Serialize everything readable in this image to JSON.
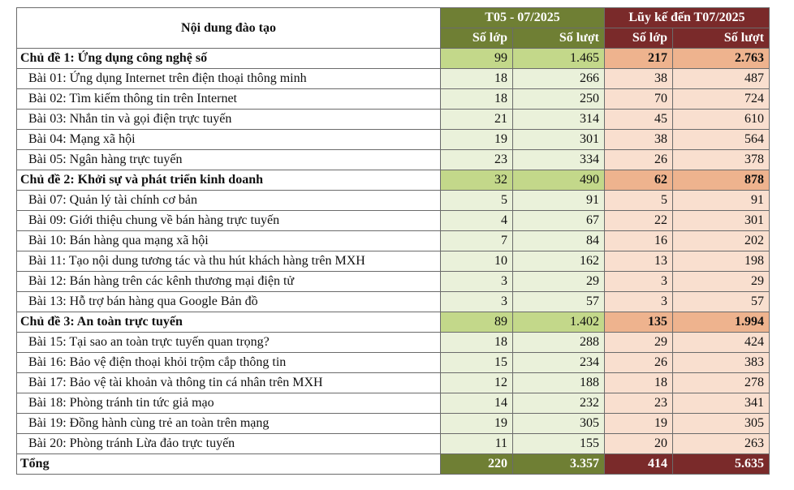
{
  "header": {
    "title": "Nội dung đào tạo",
    "group1": "T05 - 07/2025",
    "group2": "Lũy kế đến T07/2025",
    "classes": "Số lớp",
    "sessions": "Số lượt"
  },
  "rows": [
    {
      "type": "topic",
      "label": "Chủ đề 1: Ứng dụng công nghệ số",
      "v": [
        "99",
        "1.465",
        "217",
        "2.763"
      ]
    },
    {
      "type": "lesson",
      "label": "Bài 01: Ứng dụng  Internet trên điện thoại thông minh",
      "v": [
        "18",
        "266",
        "38",
        "487"
      ]
    },
    {
      "type": "lesson",
      "label": "Bài 02: Tìm kiếm thông tin trên Internet",
      "v": [
        "18",
        "250",
        "70",
        "724"
      ]
    },
    {
      "type": "lesson",
      "label": "Bài 03: Nhắn tin và gọi điện trực tuyến",
      "v": [
        "21",
        "314",
        "45",
        "610"
      ]
    },
    {
      "type": "lesson",
      "label": "Bài 04: Mạng xã hội",
      "v": [
        "19",
        "301",
        "38",
        "564"
      ]
    },
    {
      "type": "lesson",
      "label": "Bài 05: Ngân hàng trực tuyến",
      "v": [
        "23",
        "334",
        "26",
        "378"
      ]
    },
    {
      "type": "topic",
      "label": "Chủ đề 2: Khởi sự và phát triển kinh doanh",
      "v": [
        "32",
        "490",
        "62",
        "878"
      ]
    },
    {
      "type": "lesson",
      "label": "Bài 07: Quản lý tài chính cơ bản",
      "v": [
        "5",
        "91",
        "5",
        "91"
      ]
    },
    {
      "type": "lesson",
      "label": "Bài 09: Giới thiệu chung về bán hàng  trực tuyến",
      "v": [
        "4",
        "67",
        "22",
        "301"
      ]
    },
    {
      "type": "lesson",
      "label": "Bài 10: Bán hàng qua mạng xã hội",
      "v": [
        "7",
        "84",
        "16",
        "202"
      ]
    },
    {
      "type": "lesson",
      "label": "Bài 11: Tạo nội dung tương tác và thu hút khách hàng trên MXH",
      "v": [
        "10",
        "162",
        "13",
        "198"
      ]
    },
    {
      "type": "lesson",
      "label": "Bài 12: Bán hàng trên các kênh thương mại điện tử",
      "v": [
        "3",
        "29",
        "3",
        "29"
      ]
    },
    {
      "type": "lesson",
      "label": "Bài 13: Hỗ trợ bán hàng qua Google Bản đồ",
      "v": [
        "3",
        "57",
        "3",
        "57"
      ]
    },
    {
      "type": "topic",
      "label": "Chủ đề 3: An toàn trực tuyến",
      "v": [
        "89",
        "1.402",
        "135",
        "1.994"
      ]
    },
    {
      "type": "lesson",
      "label": "Bài 15: Tại sao an toàn trực tuyến quan trọng?",
      "v": [
        "18",
        "288",
        "29",
        "424"
      ]
    },
    {
      "type": "lesson",
      "label": "Bài 16: Bảo vệ điện thoại khỏi trộm cắp thông tin",
      "v": [
        "15",
        "234",
        "26",
        "383"
      ]
    },
    {
      "type": "lesson",
      "label": "Bài 17: Bảo vệ tài khoản và thông tin cá nhân trên MXH",
      "v": [
        "12",
        "188",
        "18",
        "278"
      ]
    },
    {
      "type": "lesson",
      "label": "Bài 18: Phòng tránh tin tức giả mạo",
      "v": [
        "14",
        "232",
        "23",
        "341"
      ]
    },
    {
      "type": "lesson",
      "label": "Bài 19: Đồng hành cùng trẻ an toàn trên mạng",
      "v": [
        "19",
        "305",
        "19",
        "305"
      ]
    },
    {
      "type": "lesson",
      "label": "Bài 20: Phòng tránh Lừa đảo trực tuyến",
      "v": [
        "11",
        "155",
        "20",
        "263"
      ]
    }
  ],
  "total": {
    "label": "Tổng",
    "v": [
      "220",
      "3.357",
      "414",
      "5.635"
    ]
  }
}
